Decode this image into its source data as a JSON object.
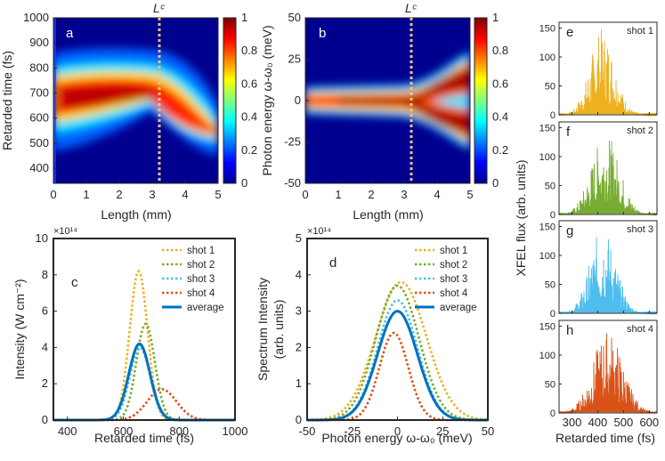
{
  "chart_data": [
    {
      "id": "a",
      "type": "heatmap",
      "panel_label": "a",
      "xlabel": "Length (mm)",
      "ylabel": "Retarded time (fs)",
      "xlim": [
        0,
        5
      ],
      "ylim": [
        340,
        1000
      ],
      "xticks": [
        "0",
        "1",
        "2",
        "3",
        "4",
        "5"
      ],
      "yticks": [
        "400",
        "500",
        "600",
        "700",
        "800",
        "900",
        "1000"
      ],
      "marker_label": "Lᶜ",
      "marker_x": 3.2,
      "colorbar": {
        "range": [
          0,
          1
        ],
        "ticks": [
          "0",
          "0.2",
          "0.4",
          "0.6",
          "0.8",
          "1"
        ],
        "colormap": "jet"
      }
    },
    {
      "id": "b",
      "type": "heatmap",
      "panel_label": "b",
      "xlabel": "Length (mm)",
      "ylabel": "Photon energy ω-ω₀ (meV)",
      "xlim": [
        0,
        5
      ],
      "ylim": [
        -50,
        50
      ],
      "xticks": [
        "0",
        "1",
        "2",
        "3",
        "4",
        "5"
      ],
      "yticks": [
        "-50",
        "-25",
        "0",
        "25",
        "50"
      ],
      "marker_label": "Lᶜ",
      "marker_x": 3.2,
      "colorbar": {
        "range": [
          0,
          1
        ],
        "ticks": [
          "0",
          "0.2",
          "0.4",
          "0.6",
          "0.8",
          "1"
        ],
        "colormap": "jet"
      }
    },
    {
      "id": "c",
      "type": "line",
      "panel_label": "c",
      "xlabel": "Retarded time (fs)",
      "ylabel": "Intensity (W cm⁻²)",
      "xlim": [
        350,
        1000
      ],
      "ylim": [
        0,
        10
      ],
      "xticks": [
        "400",
        "600",
        "800",
        "1000"
      ],
      "yticks": [
        "0",
        "2",
        "4",
        "6",
        "8",
        "10"
      ],
      "exponent": "×10¹⁴",
      "series": [
        {
          "name": "shot 1",
          "peak": 8.2,
          "center": 655,
          "width": 32,
          "color": "#EDB120",
          "style": "dotted"
        },
        {
          "name": "shot 2",
          "peak": 5.3,
          "center": 680,
          "width": 33,
          "color": "#77AC30",
          "style": "dotted"
        },
        {
          "name": "shot 3",
          "peak": 4.0,
          "center": 660,
          "width": 36,
          "color": "#4DBEEE",
          "style": "dotted"
        },
        {
          "name": "shot 4",
          "peak": 1.7,
          "center": 738,
          "width": 52,
          "color": "#D95319",
          "style": "dotted"
        },
        {
          "name": "average",
          "peak": 4.2,
          "center": 658,
          "width": 38,
          "color": "#0072BD",
          "style": "solid"
        }
      ]
    },
    {
      "id": "d",
      "type": "line",
      "panel_label": "d",
      "xlabel": "Photon energy ω-ω₀ (meV)",
      "ylabel_lines": [
        "Spectrum Intensity",
        "(arb. units)"
      ],
      "xlim": [
        -50,
        50
      ],
      "ylim": [
        0,
        5
      ],
      "xticks": [
        "-50",
        "-25",
        "0",
        "25",
        "50"
      ],
      "yticks": [
        "0",
        "1",
        "2",
        "3",
        "4",
        "5"
      ],
      "exponent": "×10¹⁴",
      "series": [
        {
          "name": "shot 1",
          "peak": 3.8,
          "center": 2,
          "width": 14,
          "color": "#EDB120",
          "style": "dotted"
        },
        {
          "name": "shot 2",
          "peak": 3.7,
          "center": 0,
          "width": 12,
          "color": "#77AC30",
          "style": "dotted"
        },
        {
          "name": "shot 3",
          "peak": 3.3,
          "center": 0,
          "width": 11,
          "color": "#4DBEEE",
          "style": "dotted"
        },
        {
          "name": "shot 4",
          "peak": 2.4,
          "center": -2,
          "width": 8,
          "color": "#D95319",
          "style": "dotted"
        },
        {
          "name": "average",
          "peak": 3.0,
          "center": 0,
          "width": 11,
          "color": "#0072BD",
          "style": "solid"
        }
      ]
    },
    {
      "id": "efgh",
      "type": "line",
      "ylabel": "XFEL flux (arb. units)",
      "xlabel": "Retarded time (fs)",
      "xlim": [
        250,
        630
      ],
      "ylim": [
        0,
        160
      ],
      "xticks": [
        "300",
        "400",
        "500",
        "600"
      ],
      "yticks": [
        "0",
        "50",
        "100",
        "150"
      ],
      "panels": [
        {
          "panel_label": "e",
          "name": "shot 1",
          "color": "#EDB120",
          "peak": 150,
          "center": 418,
          "width": 48
        },
        {
          "panel_label": "f",
          "name": "shot 2",
          "color": "#77AC30",
          "peak": 140,
          "center": 430,
          "width": 55
        },
        {
          "panel_label": "g",
          "name": "shot 3",
          "color": "#4DBEEE",
          "peak": 150,
          "center": 420,
          "width": 50
        },
        {
          "panel_label": "h",
          "name": "shot 4",
          "color": "#D95319",
          "peak": 145,
          "center": 440,
          "width": 58
        }
      ]
    }
  ]
}
